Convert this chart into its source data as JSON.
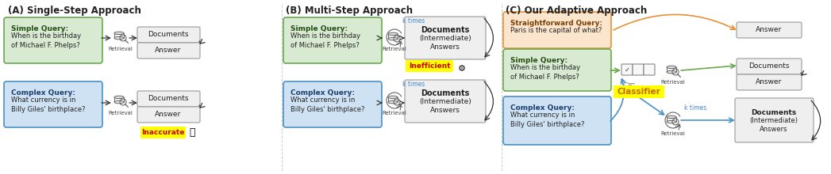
{
  "title_A": "(A) Single-Step Approach",
  "title_B": "(B) Multi-Step Approach",
  "title_C": "(C) Our Adaptive Approach",
  "green_box_color": "#d9ead3",
  "green_box_edge": "#6aa84f",
  "blue_box_color": "#cfe2f3",
  "blue_box_edge": "#4a90c4",
  "orange_box_color": "#fce5cd",
  "orange_box_edge": "#e69138",
  "gray_box_color": "#efefef",
  "gray_box_edge": "#999999",
  "inaccurate_color": "#ffff00",
  "inefficient_color": "#ffff00",
  "classifier_color": "#ffff00",
  "ktimes_color": "#4488cc",
  "orange_arrow": "#e69138",
  "green_arrow": "#6aa84f",
  "blue_arrow": "#4a90c4",
  "dark_arrow": "#333333",
  "bg_color": "#ffffff",
  "sep_color": "#cccccc"
}
